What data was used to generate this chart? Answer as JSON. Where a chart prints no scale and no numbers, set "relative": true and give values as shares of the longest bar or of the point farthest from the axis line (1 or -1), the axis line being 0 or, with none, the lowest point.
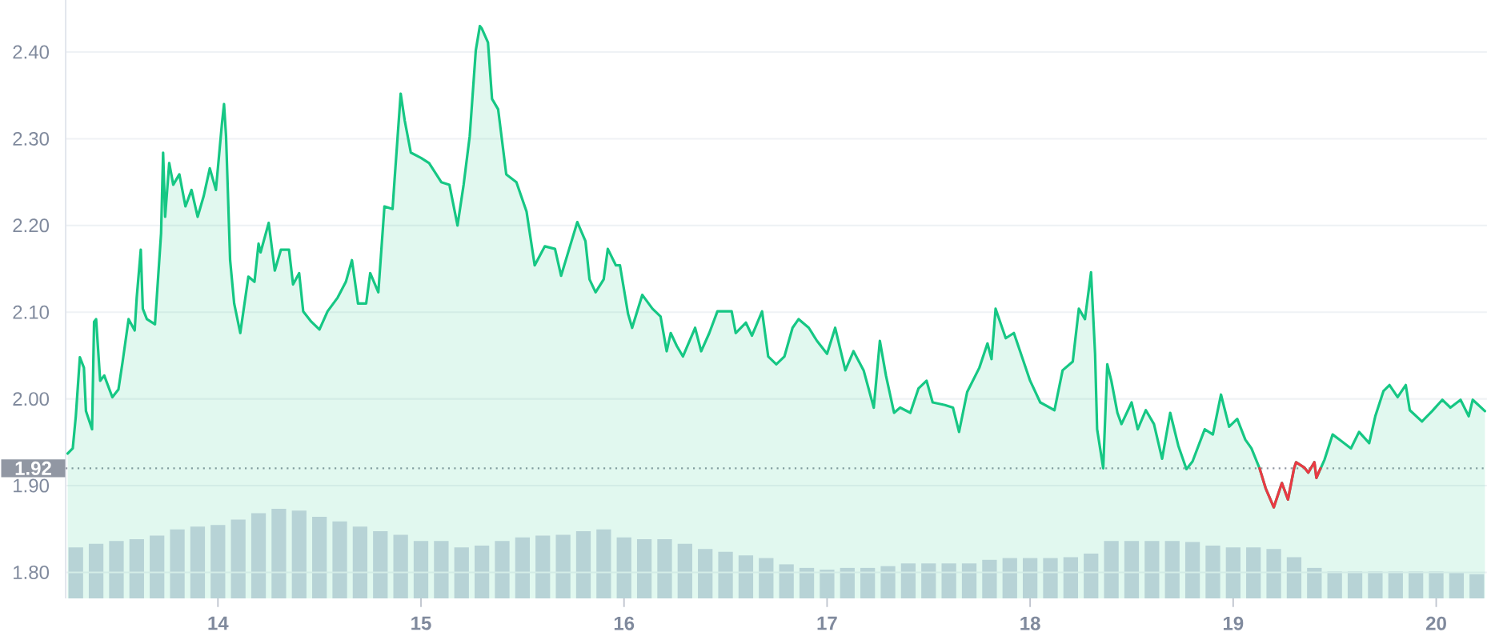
{
  "chart_data": [
    {
      "type": "area",
      "xlim": [
        13.25,
        20.25
      ],
      "ylim": [
        1.77,
        2.46
      ],
      "xticks": [
        14,
        15,
        16,
        17,
        18,
        19,
        20
      ],
      "yticks": [
        {
          "value": 1.8,
          "label": "1.80"
        },
        {
          "value": 1.9,
          "label": "1.90"
        },
        {
          "value": 2.0,
          "label": "2.00"
        },
        {
          "value": 2.1,
          "label": "2.10"
        },
        {
          "value": 2.2,
          "label": "2.20"
        },
        {
          "value": 2.3,
          "label": "2.30"
        },
        {
          "value": 2.4,
          "label": "2.40"
        }
      ],
      "grid": "y",
      "ref_lines": [
        {
          "axis": "y",
          "value": 1.92,
          "label": "1.92",
          "color": "#9197a3",
          "line_style": "dotted"
        }
      ],
      "series": [
        {
          "color": "#16c784",
          "x": [
            13.26,
            13.285,
            13.3,
            13.32,
            13.34,
            13.35,
            13.38,
            13.39,
            13.4,
            13.42,
            13.44,
            13.48,
            13.51,
            13.53,
            13.56,
            13.59,
            13.6,
            13.62,
            13.63,
            13.65,
            13.69,
            13.72,
            13.73,
            13.74,
            13.76,
            13.78,
            13.81,
            13.84,
            13.87,
            13.9,
            13.93,
            13.96,
            13.99,
            14.02,
            14.03,
            14.04,
            14.06,
            14.08,
            14.11,
            14.15,
            14.18,
            14.2,
            14.21,
            14.25,
            14.28,
            14.31,
            14.35,
            14.37,
            14.4,
            14.42,
            14.46,
            14.5,
            14.54,
            14.59,
            14.63,
            14.66,
            14.69,
            14.73,
            14.75,
            14.79,
            14.82,
            14.86,
            14.87,
            14.9,
            14.92,
            14.95,
            15.0,
            15.04,
            15.1,
            15.14,
            15.18,
            15.21,
            15.24,
            15.27,
            15.29,
            15.3,
            15.33,
            15.35,
            15.38,
            15.42,
            15.47,
            15.52,
            15.56,
            15.61,
            15.66,
            15.69,
            15.73,
            15.77,
            15.81,
            15.83,
            15.86,
            15.9,
            15.92,
            15.96,
            15.98,
            16.02,
            16.04,
            16.09,
            16.14,
            16.18,
            16.21,
            16.23,
            16.26,
            16.29,
            16.35,
            16.38,
            16.42,
            16.46,
            16.5,
            16.53,
            16.55,
            16.6,
            16.63,
            16.68,
            16.71,
            16.75,
            16.79,
            16.83,
            16.86,
            16.91,
            16.95,
            17.0,
            17.04,
            17.09,
            17.13,
            17.18,
            17.23,
            17.26,
            17.29,
            17.33,
            17.36,
            17.41,
            17.45,
            17.49,
            17.52,
            17.58,
            17.62,
            17.65,
            17.69,
            17.75,
            17.79,
            17.81,
            17.83,
            17.88,
            17.92,
            18.0,
            18.05,
            18.12,
            18.16,
            18.21,
            18.24,
            18.27,
            18.3,
            18.32,
            18.33,
            18.36,
            18.38,
            18.4,
            18.43,
            18.45,
            18.5,
            18.53,
            18.57,
            18.61,
            18.65,
            18.69,
            18.73,
            18.77,
            18.8,
            18.86,
            18.9,
            18.94,
            18.98,
            19.02,
            19.06,
            19.09,
            19.13,
            19.16,
            19.2,
            19.24,
            19.27,
            19.3,
            19.31,
            19.35,
            19.37,
            19.4,
            19.41,
            19.45,
            19.49,
            19.53,
            19.58,
            19.62,
            19.67,
            19.7,
            19.74,
            19.77,
            19.81,
            19.85,
            19.87,
            19.93,
            19.98,
            20.03,
            20.07,
            20.12,
            20.16,
            20.18,
            20.24
          ],
          "values": [
            1.937,
            1.943,
            1.98,
            2.048,
            2.036,
            1.986,
            1.965,
            2.089,
            2.092,
            2.021,
            2.027,
            2.002,
            2.011,
            2.042,
            2.092,
            2.079,
            2.117,
            2.172,
            2.104,
            2.092,
            2.086,
            2.191,
            2.284,
            2.21,
            2.272,
            2.247,
            2.259,
            2.222,
            2.241,
            2.21,
            2.234,
            2.266,
            2.241,
            2.318,
            2.34,
            2.303,
            2.16,
            2.11,
            2.076,
            2.141,
            2.135,
            2.179,
            2.169,
            2.203,
            2.148,
            2.172,
            2.172,
            2.132,
            2.145,
            2.101,
            2.089,
            2.08,
            2.101,
            2.117,
            2.135,
            2.16,
            2.11,
            2.11,
            2.145,
            2.123,
            2.222,
            2.219,
            2.253,
            2.352,
            2.321,
            2.284,
            2.278,
            2.272,
            2.25,
            2.247,
            2.2,
            2.247,
            2.303,
            2.402,
            2.43,
            2.427,
            2.411,
            2.346,
            2.334,
            2.259,
            2.25,
            2.216,
            2.154,
            2.176,
            2.173,
            2.142,
            2.173,
            2.204,
            2.182,
            2.138,
            2.123,
            2.138,
            2.173,
            2.154,
            2.154,
            2.098,
            2.082,
            2.12,
            2.104,
            2.095,
            2.055,
            2.076,
            2.061,
            2.049,
            2.082,
            2.055,
            2.076,
            2.101,
            2.101,
            2.101,
            2.076,
            2.088,
            2.073,
            2.101,
            2.049,
            2.04,
            2.049,
            2.082,
            2.092,
            2.082,
            2.067,
            2.052,
            2.082,
            2.033,
            2.055,
            2.033,
            1.99,
            2.067,
            2.027,
            1.984,
            1.99,
            1.984,
            2.012,
            2.021,
            1.996,
            1.993,
            1.99,
            1.962,
            2.008,
            2.036,
            2.064,
            2.046,
            2.104,
            2.07,
            2.076,
            2.021,
            1.996,
            1.987,
            2.033,
            2.043,
            2.104,
            2.092,
            2.146,
            2.052,
            1.965,
            1.92,
            2.04,
            2.021,
            1.984,
            1.971,
            1.996,
            1.965,
            1.987,
            1.971,
            1.931,
            1.984,
            1.946,
            1.919,
            1.928,
            1.965,
            1.959,
            2.005,
            1.968,
            1.977,
            1.953,
            1.943,
            1.92,
            1.897,
            1.875,
            1.903,
            1.884,
            1.92,
            1.927,
            1.921,
            1.915,
            1.927,
            1.909,
            1.93,
            1.959,
            1.952,
            1.943,
            1.962,
            1.949,
            1.98,
            2.009,
            2.016,
            2.002,
            2.016,
            1.987,
            1.974,
            1.986,
            1.999,
            1.99,
            1.999,
            1.98,
            1.999,
            1.986
          ]
        },
        {
          "type": "line",
          "color": "#ea3943",
          "x": [
            19.13,
            19.16,
            19.2,
            19.24,
            19.27,
            19.3,
            19.31,
            19.35,
            19.37,
            19.4,
            19.41,
            19.43
          ],
          "values": [
            1.92,
            1.897,
            1.875,
            1.903,
            1.884,
            1.92,
            1.927,
            1.921,
            1.915,
            1.927,
            1.909,
            1.92
          ]
        }
      ]
    },
    {
      "type": "bar",
      "relative": true,
      "color": "#cfd5e3",
      "xlim": [
        13.25,
        20.25
      ],
      "tick_labels": false,
      "x": [
        13.3,
        13.4,
        13.5,
        13.6,
        13.7,
        13.8,
        13.9,
        14.0,
        14.1,
        14.2,
        14.3,
        14.4,
        14.5,
        14.6,
        14.7,
        14.8,
        14.9,
        15.0,
        15.1,
        15.2,
        15.3,
        15.4,
        15.5,
        15.6,
        15.7,
        15.8,
        15.9,
        16.0,
        16.1,
        16.2,
        16.3,
        16.4,
        16.5,
        16.6,
        16.7,
        16.8,
        16.9,
        17.0,
        17.1,
        17.2,
        17.3,
        17.4,
        17.5,
        17.6,
        17.7,
        17.8,
        17.9,
        18.0,
        18.1,
        18.2,
        18.3,
        18.4,
        18.5,
        18.6,
        18.7,
        18.8,
        18.9,
        19.0,
        19.1,
        19.2,
        19.3,
        19.4,
        19.5,
        19.6,
        19.7,
        19.8,
        19.9,
        20.0,
        20.1,
        20.2
      ],
      "values": [
        0.57,
        0.61,
        0.64,
        0.66,
        0.7,
        0.77,
        0.8,
        0.82,
        0.88,
        0.95,
        1,
        0.98,
        0.91,
        0.86,
        0.8,
        0.75,
        0.71,
        0.64,
        0.64,
        0.57,
        0.59,
        0.64,
        0.68,
        0.7,
        0.71,
        0.75,
        0.77,
        0.68,
        0.66,
        0.66,
        0.61,
        0.55,
        0.52,
        0.48,
        0.45,
        0.38,
        0.34,
        0.32,
        0.34,
        0.34,
        0.36,
        0.39,
        0.39,
        0.39,
        0.39,
        0.43,
        0.45,
        0.45,
        0.45,
        0.46,
        0.5,
        0.64,
        0.64,
        0.64,
        0.64,
        0.63,
        0.59,
        0.57,
        0.57,
        0.55,
        0.46,
        0.34,
        0.3,
        0.3,
        0.3,
        0.3,
        0.3,
        0.3,
        0.29,
        0.27
      ]
    }
  ]
}
